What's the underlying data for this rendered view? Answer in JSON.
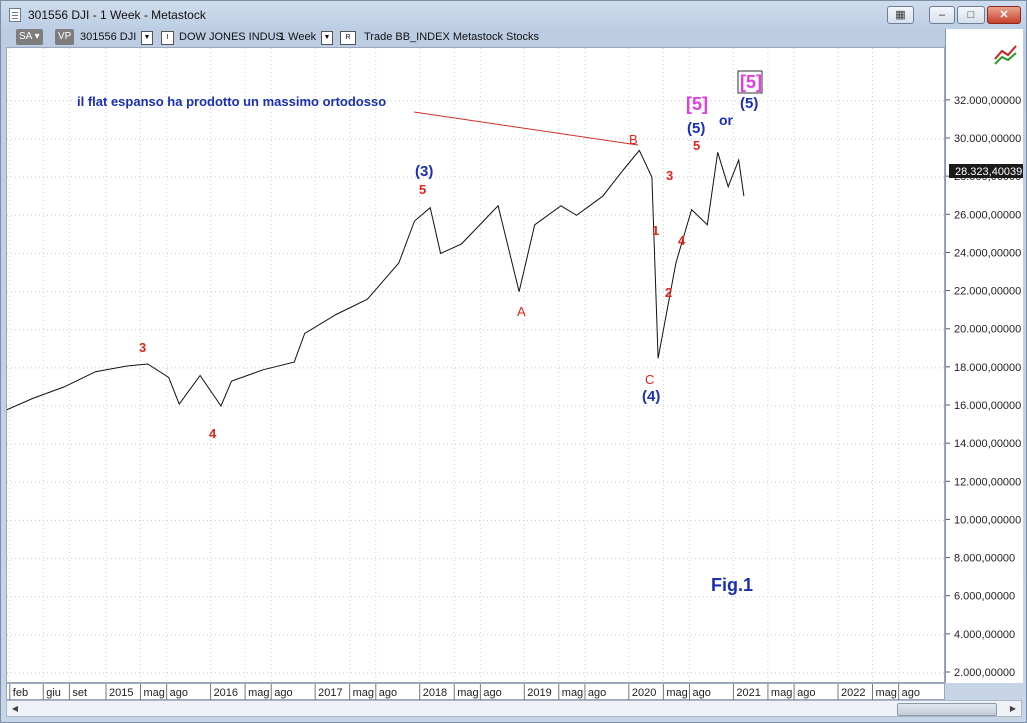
{
  "window": {
    "title": "301556 DJI - 1 Week - Metastock"
  },
  "toolbar": {
    "sa_label": "SA",
    "vp_label": "VP",
    "symbol": "301556 DJI",
    "i_box": "I",
    "security_name": "DOW JONES INDUS",
    "periodicity": "1 Week",
    "r_box": "R",
    "extra": "Trade  BB_INDEX  Metastock  Stocks"
  },
  "price_box": "28.323,40039",
  "y_ticks": [
    "32.000,00000",
    "30.000,00000",
    "28.000,00000",
    "26.000,00000",
    "24.000,00000",
    "22.000,00000",
    "20.000,00000",
    "18.000,00000",
    "16.000,00000",
    "14.000,00000",
    "12.000,00000",
    "10.000,00000",
    "8.000,00000",
    "6.000,00000",
    "4.000,00000",
    "2.000,00000"
  ],
  "x_ticks": [
    "feb",
    "giu",
    "set",
    "2015",
    "mag",
    "ago",
    "2016",
    "mag",
    "ago",
    "2017",
    "mag",
    "ago",
    "2018",
    "mag",
    "ago",
    "2019",
    "mag",
    "ago",
    "2020",
    "mag",
    "ago",
    "2021",
    "mag",
    "ago",
    "2022",
    "mag",
    "ago"
  ],
  "annotations": {
    "headline": "il flat espanso ha prodotto un massimo ortodosso",
    "w3_2014": "3",
    "w4_2016": "4",
    "w3_paren": "(3)",
    "w5_2018": "5",
    "a_label": "A",
    "b_label": "B",
    "c_label": "C",
    "w4_paren": "(4)",
    "w1": "1",
    "w2": "2",
    "w3": "3",
    "w4": "4",
    "w5": "5",
    "w5_paren": "(5)",
    "w5_bracket": "[5]",
    "or": "or",
    "w5_bracket_boxed": "[5]",
    "w5_paren_alt": "(5)",
    "fig": "Fig.1"
  },
  "colors": {
    "red": "#e0241c",
    "blue": "#1a2fb5",
    "magenta": "#e23ce0"
  },
  "chart_data": {
    "type": "line",
    "title": "",
    "xlabel": "",
    "ylabel": "",
    "ylim": [
      1000,
      34000
    ],
    "x": [
      2014.05,
      2014.3,
      2014.6,
      2014.9,
      2015.2,
      2015.4,
      2015.6,
      2015.7,
      2015.9,
      2016.1,
      2016.2,
      2016.5,
      2016.8,
      2016.9,
      2017.2,
      2017.5,
      2017.8,
      2017.95,
      2018.1,
      2018.2,
      2018.4,
      2018.75,
      2018.95,
      2019.1,
      2019.35,
      2019.5,
      2019.75,
      2019.95,
      2020.1,
      2020.22,
      2020.28,
      2020.45,
      2020.6,
      2020.75,
      2020.85,
      2020.95,
      2021.05,
      2021.1
    ],
    "series": [
      {
        "values": [
          15800,
          16400,
          17000,
          17800,
          18100,
          18200,
          17500,
          16100,
          17600,
          16000,
          17300,
          17900,
          18300,
          19800,
          20800,
          21600,
          23500,
          25700,
          26400,
          24000,
          24500,
          26500,
          22000,
          25500,
          26500,
          26000,
          27000,
          28400,
          29400,
          28000,
          18500,
          23500,
          26300,
          25500,
          29300,
          27500,
          28900,
          27000
        ]
      }
    ]
  }
}
